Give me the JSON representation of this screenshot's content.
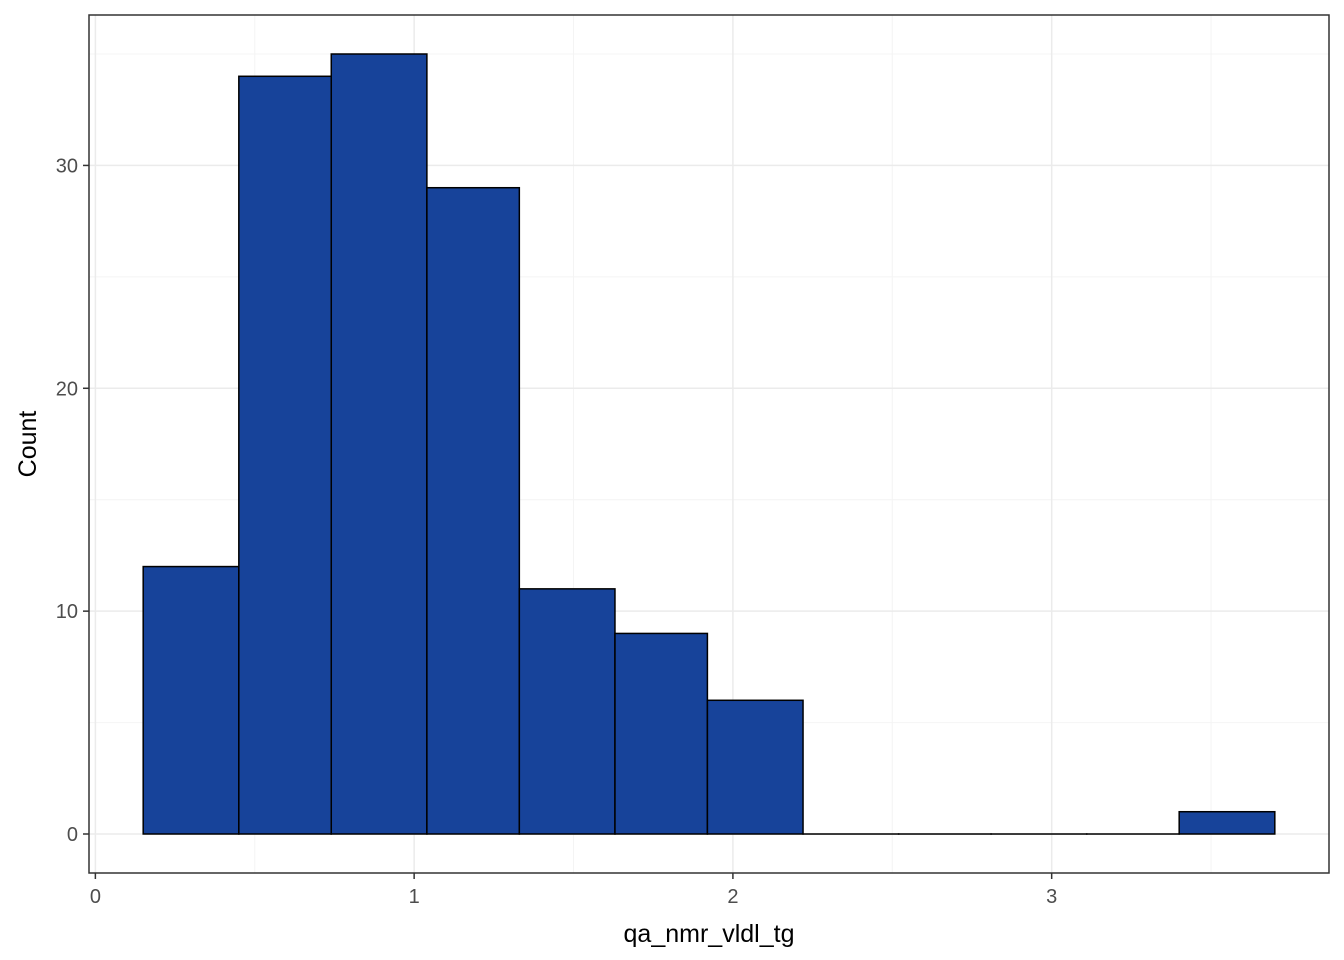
{
  "chart_data": {
    "type": "bar",
    "subtype": "histogram",
    "title": "",
    "xlabel": "qa_nmr_vldl_tg",
    "ylabel": "Count",
    "bins": [
      {
        "x0": 0.15,
        "x1": 0.45,
        "count": 12
      },
      {
        "x0": 0.45,
        "x1": 0.74,
        "count": 34
      },
      {
        "x0": 0.74,
        "x1": 1.04,
        "count": 35
      },
      {
        "x0": 1.04,
        "x1": 1.33,
        "count": 29
      },
      {
        "x0": 1.33,
        "x1": 1.63,
        "count": 11
      },
      {
        "x0": 1.63,
        "x1": 1.92,
        "count": 9
      },
      {
        "x0": 1.92,
        "x1": 2.22,
        "count": 6
      },
      {
        "x0": 2.22,
        "x1": 2.52,
        "count": 0
      },
      {
        "x0": 2.52,
        "x1": 2.81,
        "count": 0
      },
      {
        "x0": 2.81,
        "x1": 3.11,
        "count": 0
      },
      {
        "x0": 3.11,
        "x1": 3.4,
        "count": 0
      },
      {
        "x0": 3.4,
        "x1": 3.7,
        "count": 1
      }
    ],
    "xlim": [
      -0.02,
      3.87
    ],
    "ylim": [
      -1.75,
      36.75
    ],
    "xticks": [
      0,
      1,
      2,
      3
    ],
    "yticks": [
      0,
      10,
      20,
      30
    ],
    "grid": true,
    "legend": "none",
    "colors": {
      "bar_fill": "#17439a",
      "bar_outline": "#000000",
      "grid_major": "#ebebeb",
      "grid_minor": "#f4f4f4",
      "panel_border": "#333333",
      "tick_text": "#4d4d4d"
    }
  }
}
